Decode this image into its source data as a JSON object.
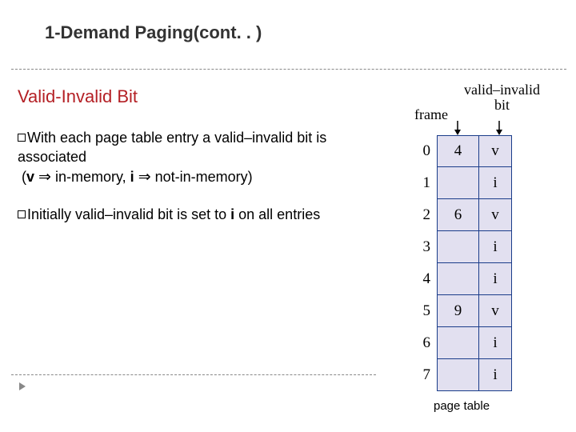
{
  "title": "1-Demand Paging(cont. . )",
  "subtitle": "Valid-Invalid Bit",
  "bullets": {
    "b1_part1": "With each page table entry a valid–invalid bit is associated",
    "b1_part2a": "(",
    "b1_v": "v",
    "b1_mid1": " in-memory, ",
    "b1_i": "i",
    "b1_mid2": " not-in-memory)",
    "b2_part1": "Initially valid–invalid bit is set to ",
    "b2_i": "i",
    "b2_part2": " on all entries"
  },
  "implies": "⇒",
  "diagram": {
    "frame_label": "frame",
    "vi_label_line1": "valid–invalid",
    "vi_label_line2": "bit",
    "caption": "page table",
    "rows": [
      {
        "idx": "0",
        "frame": "4",
        "bit": "v"
      },
      {
        "idx": "1",
        "frame": "",
        "bit": "i"
      },
      {
        "idx": "2",
        "frame": "6",
        "bit": "v"
      },
      {
        "idx": "3",
        "frame": "",
        "bit": "i"
      },
      {
        "idx": "4",
        "frame": "",
        "bit": "i"
      },
      {
        "idx": "5",
        "frame": "9",
        "bit": "v"
      },
      {
        "idx": "6",
        "frame": "",
        "bit": "i"
      },
      {
        "idx": "7",
        "frame": "",
        "bit": "i"
      }
    ],
    "colors": {
      "cell_bg": "#e2e0f0",
      "cell_border": "#1a3c8a",
      "subtitle_color": "#b42025"
    }
  }
}
